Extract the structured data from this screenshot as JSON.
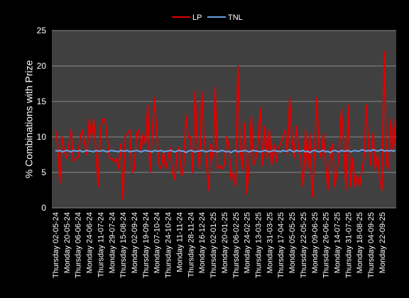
{
  "chart_data": {
    "type": "line",
    "ylabel": "% Combinations with Prize",
    "categories": [
      "Thursday 02-05-24",
      null,
      null,
      null,
      null,
      "Monday 20-05-24",
      null,
      null,
      null,
      null,
      "Thursday 06-06-24",
      null,
      null,
      null,
      null,
      "Monday 24-06-24",
      null,
      null,
      null,
      null,
      "Thursday 11-07-24",
      null,
      null,
      null,
      null,
      "Monday 29-07-24",
      null,
      null,
      null,
      null,
      "Thursday 15-08-24",
      null,
      null,
      null,
      null,
      "Monday 02-09-24",
      null,
      null,
      null,
      null,
      "Thursday 19-09-24",
      null,
      null,
      null,
      null,
      "Monday 07-10-24",
      null,
      null,
      null,
      null,
      "Thursday 24-10-24",
      null,
      null,
      null,
      null,
      "Monday 11-11-24",
      null,
      null,
      null,
      null,
      "Thursday 28-11-24",
      null,
      null,
      null,
      null,
      "Monday 16-12-24",
      null,
      null,
      null,
      null,
      "Thursday 02-01-25",
      null,
      null,
      null,
      null,
      "Monday 20-01-25",
      null,
      null,
      null,
      null,
      "Thursday 06-02-25",
      null,
      null,
      null,
      null,
      "Monday 24-02-25",
      null,
      null,
      null,
      null,
      "Thursday 13-03-25",
      null,
      null,
      null,
      null,
      "Monday 31-03-25",
      null,
      null,
      null,
      null,
      "Thursday 17-04-25",
      null,
      null,
      null,
      null,
      "Monday 05-05-25",
      null,
      null,
      null,
      null,
      "Thursday 22-05-25",
      null,
      null,
      null,
      null,
      "Monday 09-06-25",
      null,
      null,
      null,
      null,
      "Thursday 26-06-25",
      null,
      null,
      null,
      null,
      "Monday 14-07-25",
      null,
      null,
      null,
      null,
      "Thursday 31-07-25",
      null,
      null,
      null,
      null,
      "Monday 18-08-25",
      null,
      null,
      null,
      null,
      "Thursday 04-09-25",
      null,
      null,
      null,
      null,
      "Monday 22-09-25",
      null,
      null,
      null,
      null,
      null,
      null
    ],
    "series": [
      {
        "name": "LP",
        "color": "#e00000",
        "values": [
          11,
          9,
          3.5,
          10,
          8,
          7,
          9,
          11,
          6.5,
          7,
          7,
          10,
          11,
          9,
          7.5,
          12.5,
          10,
          12.5,
          8,
          3,
          11,
          12.5,
          12.5,
          10,
          7,
          7,
          6.5,
          7,
          5.5,
          9,
          1.2,
          10,
          10.5,
          11,
          5,
          5.5,
          10.5,
          11,
          8,
          10.5,
          9,
          14.5,
          5,
          10.5,
          15.5,
          10.5,
          6,
          5.5,
          8,
          5.5,
          7,
          8.5,
          5,
          4,
          8,
          8.5,
          4.5,
          6,
          13,
          10,
          10,
          5,
          16.5,
          9,
          5.5,
          16.5,
          10,
          7,
          2.5,
          9,
          7,
          17,
          5.5,
          6,
          5.5,
          6,
          10,
          9,
          4,
          5,
          3,
          20,
          8.5,
          5.5,
          12,
          2,
          6,
          13,
          6,
          7,
          9.5,
          14,
          6,
          11.5,
          7,
          11,
          6,
          9,
          6.5,
          8.5,
          9,
          10,
          11,
          7.5,
          15.5,
          10,
          7,
          11.5,
          8,
          7,
          3,
          11,
          5.5,
          10.5,
          1.5,
          7,
          15.5,
          8.5,
          7,
          10.5,
          6,
          2.5,
          8,
          9,
          3,
          5,
          8,
          14,
          9,
          2.5,
          14.5,
          3,
          7,
          3,
          4.5,
          3,
          5,
          7,
          14.5,
          9,
          6,
          10.5,
          5.5,
          7.5,
          4,
          2.5,
          22,
          6,
          5.5,
          12.5,
          8,
          12.5
        ]
      },
      {
        "name": "TNL",
        "color": "#6a9fe0",
        "values": [
          8.1,
          8.0,
          8.1,
          7.9,
          8.0,
          8.1,
          8.0,
          7.9,
          8.1,
          8.0,
          8.0,
          8.1,
          7.9,
          8.0,
          8.1,
          8.0,
          8.0,
          7.9,
          8.1,
          8.0,
          8.0,
          8.1,
          8.0,
          7.9,
          8.0,
          8.1,
          8.0,
          8.0,
          7.9,
          8.1,
          8.0,
          8.0,
          8.1,
          7.9,
          8.0,
          8.0,
          8.1,
          8.0,
          7.9,
          8.0,
          8.1,
          8.0,
          8.0,
          7.9,
          8.1,
          8.0,
          8.0,
          8.1,
          7.9,
          8.0,
          8.0,
          8.1,
          8.0,
          7.9,
          8.0,
          8.1,
          8.0,
          8.0,
          7.8,
          8.0,
          8.1,
          8.0,
          7.9,
          8.0,
          8.0,
          8.1,
          8.0,
          7.9,
          8.0,
          8.1,
          8.0,
          8.0,
          7.9,
          8.0,
          8.1,
          8.0,
          7.9,
          8.0,
          7.8,
          8.0,
          8.1,
          7.9,
          8.0,
          8.0,
          8.1,
          8.0,
          7.9,
          8.0,
          8.1,
          8.0,
          8.0,
          7.9,
          8.0,
          8.1,
          8.0,
          7.9,
          8.0,
          8.1,
          8.0,
          8.0,
          7.9,
          8.1,
          8.0,
          8.0,
          8.2,
          8.0,
          7.9,
          8.1,
          8.0,
          8.0,
          8.1,
          7.9,
          8.0,
          7.8,
          8.0,
          8.1,
          8.0,
          7.9,
          8.0,
          8.1,
          7.9,
          8.0,
          7.8,
          8.0,
          8.1,
          8.0,
          7.9,
          8.1,
          8.0,
          8.0,
          8.1,
          7.9,
          8.0,
          8.1,
          8.0,
          8.0,
          8.2,
          8.1,
          8.0,
          8.1,
          8.0,
          8.2,
          8.1,
          8.0,
          8.1,
          8.2,
          8.0,
          8.1,
          8.0,
          8.1,
          8.0,
          8.1
        ]
      }
    ],
    "ylim": [
      0,
      25
    ],
    "yticks": [
      0,
      5,
      10,
      15,
      20,
      25
    ],
    "grid": true,
    "legend": "top"
  }
}
